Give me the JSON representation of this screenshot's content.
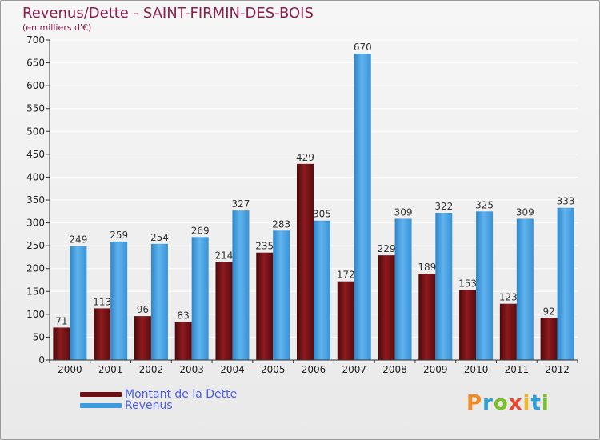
{
  "header": {
    "title": "Revenus/Dette - SAINT-FIRMIN-DES-BOIS",
    "subtitle": "(en milliers d'€)"
  },
  "legend": {
    "items": [
      {
        "label": "Montant de la Dette",
        "color": "#6b0f12"
      },
      {
        "label": "Revenus",
        "color": "#3a9be0"
      }
    ]
  },
  "brand": {
    "logo_text": "Proxiti"
  },
  "chart_data": {
    "type": "bar",
    "title": "Revenus/Dette - SAINT-FIRMIN-DES-BOIS",
    "ylabel": "(en milliers d'€)",
    "xlabel": "",
    "ylim": [
      0,
      700
    ],
    "yticks": [
      0,
      50,
      100,
      150,
      200,
      250,
      300,
      350,
      400,
      450,
      500,
      550,
      600,
      650,
      700
    ],
    "categories": [
      "2000",
      "2001",
      "2002",
      "2003",
      "2004",
      "2005",
      "2006",
      "2007",
      "2008",
      "2009",
      "2010",
      "2011",
      "2012"
    ],
    "series": [
      {
        "name": "Montant de la Dette",
        "color": "#6b0f12",
        "values": [
          71,
          113,
          96,
          83,
          214,
          235,
          429,
          172,
          229,
          189,
          153,
          123,
          92
        ]
      },
      {
        "name": "Revenus",
        "color": "#3a9be0",
        "values": [
          249,
          259,
          254,
          269,
          327,
          283,
          305,
          670,
          309,
          322,
          325,
          309,
          333
        ]
      }
    ],
    "legend_position": "bottom-left",
    "grid": true
  }
}
